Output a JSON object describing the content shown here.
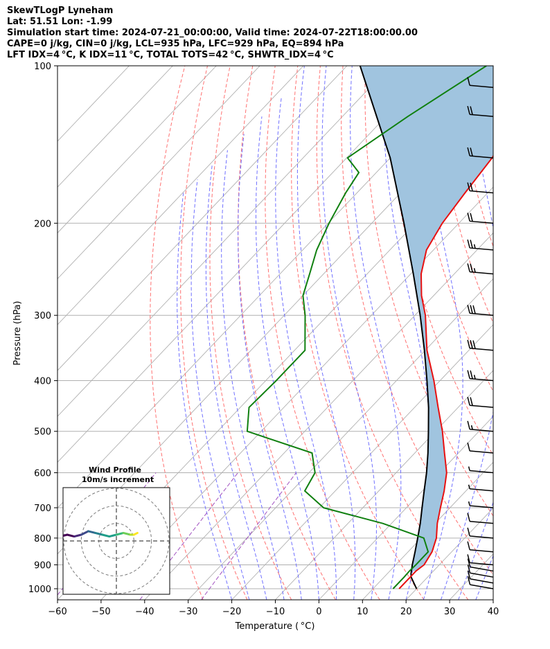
{
  "header": {
    "line1": "SkewTLogP Lyneham",
    "line2": "Lat: 51.51   Lon: -1.99",
    "line3": "Simulation start time: 2024-07-21_00:00:00, Valid time: 2024-07-22T18:00:00.00",
    "line4": "CAPE=0 j/kg, CIN=0 j/kg, LCL=935 hPa, LFC=929 hPa, EQ=894 hPa",
    "line5": "LFT IDX=4 °C, K IDX=11 °C, TOTAL TOTS=42 °C, SHWTR_IDX=4 °C"
  },
  "chart_data": {
    "type": "skewt",
    "xlabel": "Temperature ( °C)",
    "ylabel": "Pressure (hPa)",
    "xlim": [
      -60,
      40
    ],
    "ylim": [
      1050,
      100
    ],
    "x_ticks": [
      "−60",
      "−50",
      "−40",
      "−30",
      "−20",
      "−10",
      "0",
      "10",
      "20",
      "30",
      "40"
    ],
    "y_ticks": [
      "100",
      "200",
      "300",
      "400",
      "500",
      "600",
      "700",
      "800",
      "900",
      "1000"
    ],
    "grid": true,
    "cape_fill_color": "#a0c4df",
    "colors": {
      "temperature": "#e81010",
      "dewpoint": "#108010",
      "parcel": "#000000",
      "dry_adiabats": "#ff7070",
      "moist_adiabats": "#6f6fff",
      "mixing_ratio": "#a050c0",
      "isotherms": "#b0b0b0"
    },
    "temperature": {
      "p": [
        1000,
        950,
        925,
        900,
        850,
        800,
        750,
        700,
        650,
        600,
        550,
        500,
        450,
        400,
        350,
        300,
        275,
        250,
        225,
        200,
        175,
        150,
        125,
        115,
        100
      ],
      "t": [
        16,
        16,
        16,
        16.5,
        15.5,
        13.5,
        10.5,
        7.8,
        5,
        1.6,
        -3.2,
        -8.4,
        -14.6,
        -21.4,
        -29.6,
        -37.6,
        -42.8,
        -47.6,
        -51.6,
        -53.8,
        -55.2,
        -56.6,
        -60,
        -61.4,
        -62.6
      ]
    },
    "dewpoint": {
      "p": [
        1000,
        950,
        925,
        900,
        850,
        800,
        750,
        700,
        650,
        600,
        550,
        500,
        450,
        400,
        350,
        300,
        275,
        250,
        225,
        200,
        175,
        160,
        150,
        125,
        100
      ],
      "t": [
        14.6,
        14.6,
        14.5,
        14.6,
        14.6,
        10.6,
        -2,
        -19,
        -27,
        -28.6,
        -33.6,
        -53.2,
        -58,
        -57.6,
        -57.6,
        -65.2,
        -70,
        -73.2,
        -76.8,
        -79.8,
        -82.6,
        -84,
        -89.8,
        -85,
        -78
      ]
    },
    "parcel": {
      "p": [
        1000,
        950,
        935,
        900,
        850,
        800,
        750,
        700,
        650,
        600,
        550,
        500,
        450,
        400,
        350,
        300,
        250,
        200,
        150,
        100
      ],
      "t": [
        20,
        16.2,
        15.4,
        13.8,
        11.6,
        9.2,
        6.6,
        3.6,
        0.4,
        -3,
        -7,
        -11.6,
        -16.8,
        -23,
        -30.2,
        -38.8,
        -49.4,
        -62.6,
        -80,
        -107
      ]
    },
    "wind_barbs": [
      {
        "p": 1000,
        "speed_kt": 8,
        "dir_deg": 260
      },
      {
        "p": 975,
        "speed_kt": 10,
        "dir_deg": 260
      },
      {
        "p": 950,
        "speed_kt": 10,
        "dir_deg": 260
      },
      {
        "p": 925,
        "speed_kt": 10,
        "dir_deg": 260
      },
      {
        "p": 900,
        "speed_kt": 10,
        "dir_deg": 265
      },
      {
        "p": 850,
        "speed_kt": 10,
        "dir_deg": 265
      },
      {
        "p": 800,
        "speed_kt": 10,
        "dir_deg": 265
      },
      {
        "p": 750,
        "speed_kt": 10,
        "dir_deg": 265
      },
      {
        "p": 700,
        "speed_kt": 5,
        "dir_deg": 265
      },
      {
        "p": 650,
        "speed_kt": 5,
        "dir_deg": 265
      },
      {
        "p": 600,
        "speed_kt": 5,
        "dir_deg": 265
      },
      {
        "p": 550,
        "speed_kt": 10,
        "dir_deg": 265
      },
      {
        "p": 500,
        "speed_kt": 15,
        "dir_deg": 265
      },
      {
        "p": 450,
        "speed_kt": 20,
        "dir_deg": 265
      },
      {
        "p": 400,
        "speed_kt": 25,
        "dir_deg": 265
      },
      {
        "p": 350,
        "speed_kt": 30,
        "dir_deg": 265
      },
      {
        "p": 300,
        "speed_kt": 30,
        "dir_deg": 265
      },
      {
        "p": 250,
        "speed_kt": 25,
        "dir_deg": 265
      },
      {
        "p": 225,
        "speed_kt": 25,
        "dir_deg": 265
      },
      {
        "p": 200,
        "speed_kt": 20,
        "dir_deg": 265
      },
      {
        "p": 175,
        "speed_kt": 20,
        "dir_deg": 265
      },
      {
        "p": 150,
        "speed_kt": 20,
        "dir_deg": 265
      },
      {
        "p": 125,
        "speed_kt": 20,
        "dir_deg": 265
      },
      {
        "p": 110,
        "speed_kt": 10,
        "dir_deg": 265
      }
    ],
    "hodograph": {
      "title_line1": "Wind Profile",
      "title_line2": "10m/s increment",
      "u": [
        -32,
        -28,
        -24,
        -20,
        -16,
        -12,
        -8,
        -4,
        0,
        4,
        8,
        10,
        12
      ],
      "v": [
        -1,
        0,
        -1,
        0,
        2,
        1,
        0,
        -1,
        0,
        1,
        0,
        0,
        1
      ],
      "colormap": [
        "#440154",
        "#482878",
        "#3e4989",
        "#31688e",
        "#26828e",
        "#1f9e89",
        "#35b779",
        "#6ece58",
        "#b5de2b",
        "#fde725"
      ]
    }
  }
}
